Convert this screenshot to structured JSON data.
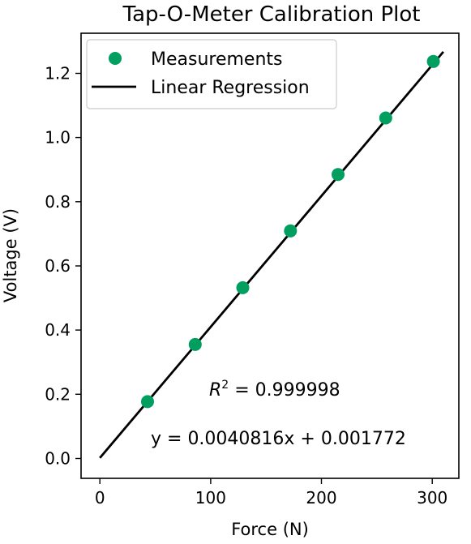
{
  "chart_data": {
    "type": "scatter",
    "title": "Tap-O-Meter Calibration Plot",
    "xlabel": "Force (N)",
    "ylabel": "Voltage (V)",
    "xlim": [
      -17,
      324
    ],
    "ylim": [
      -0.062,
      1.325
    ],
    "xticks": [
      0,
      100,
      200,
      300
    ],
    "xtick_labels": [
      "0",
      "100",
      "200",
      "300"
    ],
    "yticks": [
      0.0,
      0.2,
      0.4,
      0.6,
      0.8,
      1.0,
      1.2
    ],
    "ytick_labels": [
      "0.0",
      "0.2",
      "0.4",
      "0.6",
      "0.8",
      "1.0",
      "1.2"
    ],
    "grid": false,
    "legend_position": "upper-left",
    "series": [
      {
        "name": "Measurements",
        "type": "scatter",
        "color": "#009e5f",
        "x": [
          43,
          86,
          129,
          172,
          215,
          258,
          301
        ],
        "y": [
          0.177,
          0.355,
          0.532,
          0.709,
          0.885,
          1.061,
          1.237
        ]
      },
      {
        "name": "Linear Regression",
        "type": "line",
        "color": "#000000",
        "x": [
          0,
          310
        ],
        "y": [
          0.001772,
          1.267068
        ]
      }
    ],
    "annotations": {
      "r2_prefix": "R",
      "r2_exponent": "2",
      "r2_value": " = 0.999998",
      "equation": "y = 0.0040816x + 0.001772"
    }
  }
}
